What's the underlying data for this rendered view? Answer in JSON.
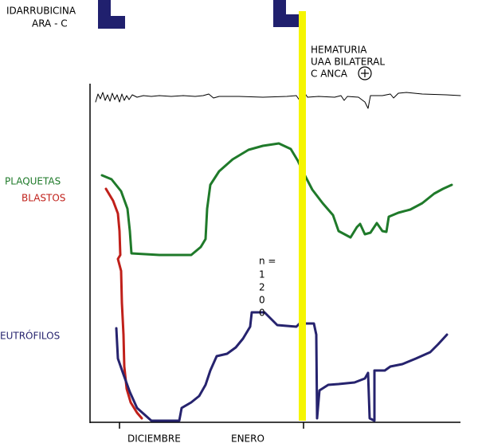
{
  "treatment": {
    "drug_1": "IDARRUBICINA",
    "drug_2": "ARA - C"
  },
  "event": {
    "line_1": "HEMATURIA",
    "line_2": "UAA BILATERAL",
    "line_3": "C ANCA"
  },
  "series_labels": {
    "platelets": "PLAQUETAS",
    "blasts": "BLASTOS",
    "neutrophils": "EUTRÓFILOS"
  },
  "annotation": {
    "lines": [
      "n =",
      "1",
      "2",
      "0",
      "0"
    ]
  },
  "months": [
    "DICIEMBRE",
    "ENERO"
  ]
}
